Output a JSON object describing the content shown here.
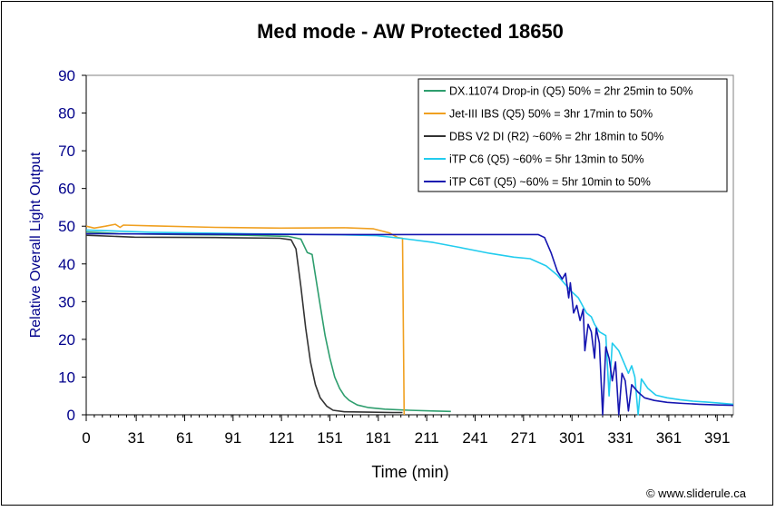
{
  "chart_data": {
    "type": "line",
    "title": "Med mode - AW Protected 18650",
    "xlabel": "Time (min)",
    "ylabel": "Relative Overall Light Output",
    "xlim": [
      0,
      401
    ],
    "ylim": [
      0,
      90
    ],
    "xticks": [
      0,
      31,
      61,
      91,
      121,
      151,
      181,
      211,
      241,
      271,
      301,
      331,
      361,
      391
    ],
    "yticks": [
      0,
      10,
      20,
      30,
      40,
      50,
      60,
      70,
      80,
      90
    ],
    "grid": false,
    "legend_position": "top-right",
    "credit": "© www.sliderule.ca",
    "series": [
      {
        "name": "DX.11074 Drop-in (Q5) 50% = 2hr 25min to 50%",
        "color": "#2e9e6e",
        "points": [
          [
            0,
            48.5
          ],
          [
            20,
            48
          ],
          [
            60,
            47.8
          ],
          [
            100,
            47.6
          ],
          [
            125,
            47.3
          ],
          [
            133,
            46.6
          ],
          [
            137,
            43
          ],
          [
            140,
            42.5
          ],
          [
            142,
            37
          ],
          [
            145,
            29
          ],
          [
            148,
            21
          ],
          [
            151,
            15
          ],
          [
            154,
            10
          ],
          [
            157,
            7
          ],
          [
            160,
            5
          ],
          [
            163,
            3.8
          ],
          [
            168,
            2.6
          ],
          [
            175,
            1.9
          ],
          [
            185,
            1.5
          ],
          [
            200,
            1.2
          ],
          [
            215,
            1
          ],
          [
            226,
            0.9
          ]
        ]
      },
      {
        "name": "Jet-III IBS (Q5) 50% = 3hr 17min to 50%",
        "color": "#f0a020",
        "points": [
          [
            0,
            50
          ],
          [
            5,
            49.5
          ],
          [
            12,
            50
          ],
          [
            18,
            50.5
          ],
          [
            21,
            49.7
          ],
          [
            23,
            50.3
          ],
          [
            40,
            50.1
          ],
          [
            80,
            49.7
          ],
          [
            120,
            49.5
          ],
          [
            160,
            49.6
          ],
          [
            178,
            49.3
          ],
          [
            188,
            48.2
          ],
          [
            193,
            47
          ],
          [
            196,
            46.8
          ],
          [
            197,
            0
          ]
        ]
      },
      {
        "name": "DBS V2 DI (R2) ~60% = 2hr 18min to 50%",
        "color": "#333333",
        "points": [
          [
            0,
            47.6
          ],
          [
            30,
            47.1
          ],
          [
            80,
            47
          ],
          [
            120,
            46.8
          ],
          [
            127,
            46.4
          ],
          [
            130,
            44
          ],
          [
            133,
            34
          ],
          [
            136,
            23
          ],
          [
            139,
            14
          ],
          [
            142,
            8
          ],
          [
            145,
            4.5
          ],
          [
            149,
            2.3
          ],
          [
            153,
            1.2
          ],
          [
            160,
            0.8
          ],
          [
            175,
            0.7
          ],
          [
            190,
            0.6
          ],
          [
            196,
            0.6
          ]
        ]
      },
      {
        "name": "iTP C6 (Q5) ~60% =  5hr 13min to 50%",
        "color": "#22ccee",
        "points": [
          [
            0,
            49
          ],
          [
            40,
            48.4
          ],
          [
            100,
            48
          ],
          [
            150,
            47.8
          ],
          [
            180,
            47.5
          ],
          [
            195,
            46.8
          ],
          [
            215,
            45.7
          ],
          [
            230,
            44.5
          ],
          [
            250,
            42.8
          ],
          [
            265,
            41.8
          ],
          [
            275,
            41.4
          ],
          [
            285,
            39.5
          ],
          [
            292,
            37
          ],
          [
            300,
            33
          ],
          [
            305,
            31
          ],
          [
            310,
            27
          ],
          [
            313,
            26
          ],
          [
            315,
            24
          ],
          [
            318,
            22
          ],
          [
            322,
            21
          ],
          [
            324,
            5
          ],
          [
            326,
            19
          ],
          [
            330,
            17
          ],
          [
            333,
            14
          ],
          [
            336,
            11
          ],
          [
            338,
            13
          ],
          [
            340,
            10
          ],
          [
            342,
            0
          ],
          [
            344,
            9.5
          ],
          [
            348,
            7
          ],
          [
            353,
            5.2
          ],
          [
            360,
            4.5
          ],
          [
            368,
            4
          ],
          [
            376,
            3.6
          ],
          [
            384,
            3.4
          ],
          [
            392,
            3.1
          ],
          [
            401,
            2.8
          ]
        ]
      },
      {
        "name": "iTP C6T (Q5) ~60% = 5hr 10min to 50%",
        "color": "#1515b0",
        "points": [
          [
            0,
            48
          ],
          [
            60,
            47.9
          ],
          [
            150,
            47.8
          ],
          [
            200,
            47.8
          ],
          [
            240,
            47.8
          ],
          [
            280,
            47.8
          ],
          [
            284,
            47
          ],
          [
            288,
            43
          ],
          [
            292,
            38
          ],
          [
            295,
            36
          ],
          [
            297,
            37.5
          ],
          [
            299,
            31
          ],
          [
            300,
            35
          ],
          [
            302,
            27
          ],
          [
            304,
            29
          ],
          [
            306,
            25
          ],
          [
            308,
            28
          ],
          [
            309,
            17
          ],
          [
            311,
            24
          ],
          [
            313,
            22
          ],
          [
            315,
            15
          ],
          [
            316,
            23
          ],
          [
            318,
            19
          ],
          [
            320,
            0
          ],
          [
            322,
            18
          ],
          [
            324,
            15
          ],
          [
            326,
            9
          ],
          [
            328,
            14
          ],
          [
            330,
            0
          ],
          [
            332,
            11
          ],
          [
            334,
            9
          ],
          [
            336,
            1
          ],
          [
            338,
            8
          ],
          [
            342,
            6
          ],
          [
            346,
            4.5
          ],
          [
            352,
            3.8
          ],
          [
            360,
            3.3
          ],
          [
            370,
            3
          ],
          [
            380,
            2.8
          ],
          [
            392,
            2.6
          ],
          [
            401,
            2.5
          ]
        ]
      }
    ]
  }
}
